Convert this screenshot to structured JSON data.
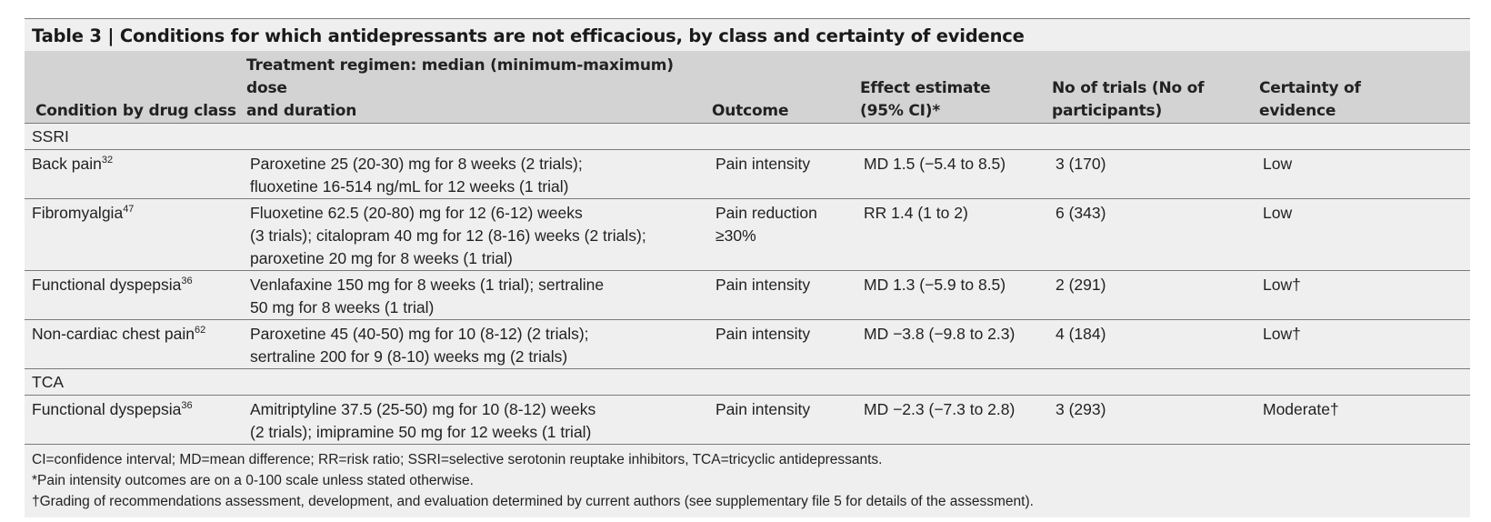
{
  "table": {
    "title": "Table 3 | Conditions for which antidepressants are not efficacious, by class and certainty of evidence",
    "headers": {
      "condition": "Condition by drug class",
      "regimen_line1": "Treatment regimen: median (minimum-maximum) dose",
      "regimen_line2": "and duration",
      "outcome": "Outcome",
      "effect_line1": "Effect estimate",
      "effect_line2": "(95% CI)*",
      "trials_line1": "No of trials (No of",
      "trials_line2": "participants)",
      "certainty_line1": "Certainty of",
      "certainty_line2": "evidence"
    },
    "groups": [
      {
        "class_label": "SSRI",
        "rows": [
          {
            "condition": "Back pain",
            "ref": "32",
            "regimen": [
              "Paroxetine 25 (20-30) mg for 8 weeks (2 trials);",
              "fluoxetine 16-514 ng/mL for 12 weeks (1 trial)"
            ],
            "outcome": [
              "Pain intensity"
            ],
            "effect": "MD 1.5 (−5.4 to 8.5)",
            "trials": "3 (170)",
            "certainty": "Low"
          },
          {
            "condition": "Fibromyalgia",
            "ref": "47",
            "regimen": [
              "Fluoxetine 62.5 (20-80) mg for 12 (6-12) weeks",
              "(3 trials); citalopram 40 mg for 12 (8-16) weeks (2 trials);",
              "paroxetine 20 mg for 8 weeks (1 trial)"
            ],
            "outcome": [
              "Pain reduction",
              "≥30%"
            ],
            "effect": "RR 1.4 (1 to 2)",
            "trials": "6 (343)",
            "certainty": "Low"
          },
          {
            "condition": "Functional dyspepsia",
            "ref": "36",
            "regimen": [
              "Venlafaxine 150 mg for 8 weeks (1 trial); sertraline",
              "50 mg for 8 weeks (1 trial)"
            ],
            "outcome": [
              "Pain intensity"
            ],
            "effect": "MD 1.3 (−5.9 to 8.5)",
            "trials": "2 (291)",
            "certainty": "Low†"
          },
          {
            "condition": "Non-cardiac chest pain",
            "ref": "62",
            "regimen": [
              "Paroxetine 45 (40-50) mg for 10 (8-12) (2 trials);",
              "sertraline 200 for 9 (8-10) weeks mg (2 trials)"
            ],
            "outcome": [
              "Pain intensity"
            ],
            "effect": "MD −3.8 (−9.8 to 2.3)",
            "trials": "4 (184)",
            "certainty": "Low†"
          }
        ]
      },
      {
        "class_label": "TCA",
        "rows": [
          {
            "condition": "Functional dyspepsia",
            "ref": "36",
            "regimen": [
              "Amitriptyline 37.5 (25-50) mg for 10 (8-12) weeks",
              "(2 trials); imipramine 50 mg for 12 weeks (1 trial)"
            ],
            "outcome": [
              "Pain intensity"
            ],
            "effect": "MD −2.3 (−7.3 to 2.8)",
            "trials": "3 (293)",
            "certainty": "Moderate†"
          }
        ]
      }
    ],
    "footnotes": [
      "CI=confidence interval; MD=mean difference; RR=risk ratio; SSRI=selective serotonin reuptake inhibitors, TCA=tricyclic antidepressants.",
      "*Pain intensity outcomes are on a 0-100 scale unless stated otherwise.",
      "†Grading of recommendations assessment, development, and evaluation determined by current authors (see supplementary file 5 for details of the assessment)."
    ]
  }
}
